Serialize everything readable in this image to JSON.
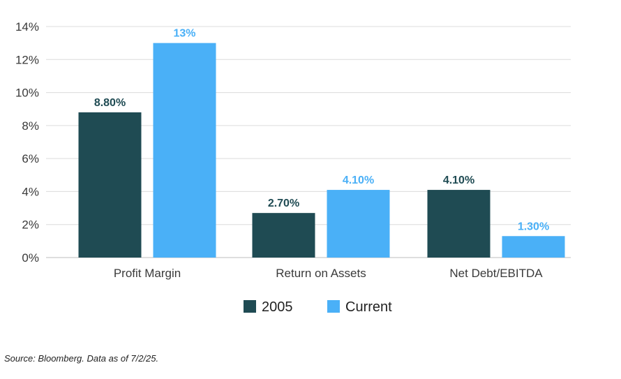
{
  "chart_data": {
    "type": "bar",
    "categories": [
      "Profit Margin",
      "Return on Assets",
      "Net Debt/EBITDA"
    ],
    "series": [
      {
        "name": "2005",
        "values": [
          8.8,
          2.7,
          4.1
        ],
        "labels": [
          "8.80%",
          "2.70%",
          "4.10%"
        ],
        "color": "#1f4b53"
      },
      {
        "name": "Current",
        "values": [
          13,
          4.1,
          1.3
        ],
        "labels": [
          "13%",
          "4.10%",
          "1.30%"
        ],
        "color": "#4ab0f7"
      }
    ],
    "yticks": [
      "0%",
      "2%",
      "4%",
      "6%",
      "8%",
      "10%",
      "12%",
      "14%"
    ],
    "ylim": [
      0,
      14
    ],
    "ystep": 2,
    "grid": true,
    "legend_position": "bottom-center"
  },
  "footnote": "Source: Bloomberg. Data as of 7/2/25."
}
